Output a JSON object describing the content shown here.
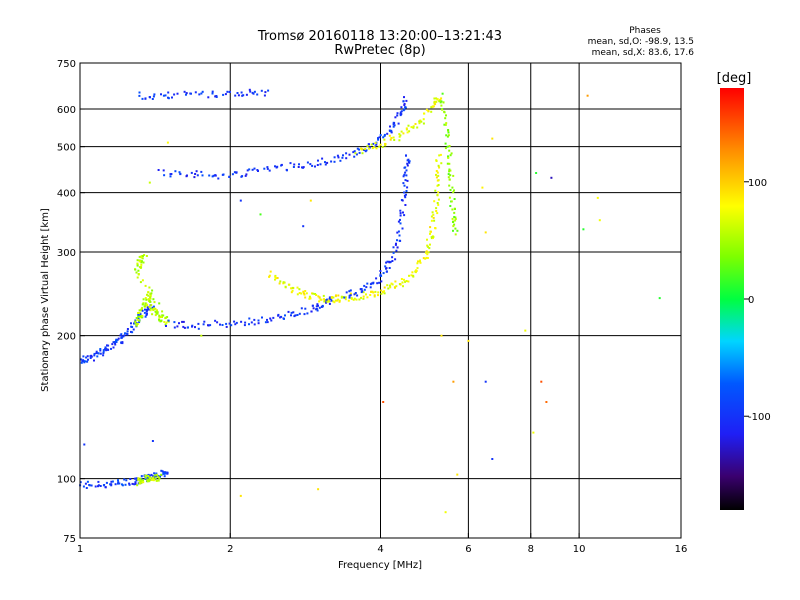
{
  "header": {
    "title_line1": "Tromsø 20160118 13:20:00–13:21:43",
    "title_line2": "RwPretec (8p)"
  },
  "stats": {
    "heading": "Phases",
    "line_o": "mean, sd,O: -98.9, 13.5",
    "line_x": "mean, sd,X:  83.6, 17.6"
  },
  "colorbar": {
    "unit_label": "[deg]",
    "ticks": [
      {
        "value": 100,
        "label": "100"
      },
      {
        "value": 0,
        "label": "0"
      },
      {
        "value": -100,
        "label": "-100"
      }
    ],
    "range": [
      -180,
      180
    ]
  },
  "chart_data": {
    "type": "scatter",
    "title": "Tromsø 20160118 13:20:00–13:21:43",
    "subtitle": "RwPretec (8p)",
    "xlabel": "Frequency [MHz]",
    "ylabel": "Stationary phase Virtual Height [km]",
    "xscale": "log",
    "yscale": "log",
    "xlim": [
      1,
      16
    ],
    "ylim": [
      75,
      750
    ],
    "x_ticks": [
      1,
      2,
      4,
      6,
      8,
      10,
      16
    ],
    "x_tick_labels": [
      "1",
      "2",
      "4",
      "6",
      "8",
      "10",
      "16"
    ],
    "y_ticks": [
      75,
      100,
      200,
      300,
      400,
      500,
      600,
      750
    ],
    "y_tick_labels": [
      "75",
      "100",
      "200",
      "300",
      "400",
      "500",
      "600",
      "750"
    ],
    "x_gridlines": [
      2,
      4,
      6,
      8,
      10
    ],
    "y_gridlines": [
      100,
      200,
      300,
      400,
      500,
      600
    ],
    "color_scale": "phase in degrees, -180 to 180",
    "traces": [
      {
        "points": [
          [
            1.0,
            97
          ],
          [
            1.1,
            97
          ],
          [
            1.2,
            98
          ],
          [
            1.3,
            99
          ],
          [
            1.35,
            100
          ],
          [
            1.4,
            101
          ],
          [
            1.45,
            102
          ],
          [
            1.5,
            103
          ]
        ],
        "phase": -95
      },
      {
        "points": [
          [
            1.3,
            98
          ],
          [
            1.35,
            100
          ],
          [
            1.4,
            100
          ],
          [
            1.45,
            101
          ]
        ],
        "phase": 60
      },
      {
        "points": [
          [
            1.0,
            175
          ],
          [
            1.05,
            180
          ],
          [
            1.1,
            185
          ],
          [
            1.15,
            190
          ],
          [
            1.2,
            195
          ],
          [
            1.25,
            205
          ],
          [
            1.3,
            215
          ],
          [
            1.35,
            225
          ],
          [
            1.4,
            232
          ]
        ],
        "phase": -95
      },
      {
        "points": [
          [
            1.3,
            210
          ],
          [
            1.32,
            220
          ],
          [
            1.35,
            235
          ],
          [
            1.38,
            245
          ],
          [
            1.4,
            225
          ],
          [
            1.45,
            218
          ],
          [
            1.5,
            214
          ],
          [
            1.3,
            270
          ],
          [
            1.32,
            285
          ],
          [
            1.35,
            300
          ]
        ],
        "phase": 55
      },
      {
        "points": [
          [
            1.5,
            212
          ],
          [
            1.7,
            210
          ],
          [
            2.0,
            212
          ],
          [
            2.3,
            215
          ],
          [
            2.6,
            220
          ],
          [
            2.9,
            228
          ],
          [
            3.1,
            234
          ],
          [
            3.2,
            238
          ]
        ],
        "phase": -100
      },
      {
        "points": [
          [
            2.4,
            270
          ],
          [
            2.6,
            255
          ],
          [
            2.8,
            245
          ],
          [
            3.0,
            240
          ],
          [
            3.2,
            239
          ],
          [
            3.4,
            240
          ],
          [
            3.7,
            243
          ],
          [
            4.0,
            248
          ],
          [
            4.3,
            255
          ],
          [
            4.6,
            268
          ],
          [
            4.9,
            290
          ],
          [
            5.05,
            320
          ],
          [
            5.15,
            360
          ],
          [
            5.2,
            420
          ],
          [
            5.25,
            480
          ]
        ],
        "phase": 75
      },
      {
        "points": [
          [
            3.4,
            242
          ],
          [
            3.7,
            250
          ],
          [
            4.0,
            265
          ],
          [
            4.2,
            285
          ],
          [
            4.35,
            320
          ],
          [
            4.45,
            380
          ],
          [
            4.5,
            440
          ],
          [
            4.55,
            480
          ]
        ],
        "phase": -100
      },
      {
        "points": [
          [
            1.45,
            440
          ],
          [
            1.7,
            438
          ],
          [
            2.0,
            435
          ],
          [
            2.3,
            445
          ],
          [
            2.7,
            455
          ],
          [
            3.1,
            465
          ],
          [
            3.5,
            480
          ],
          [
            3.9,
            505
          ],
          [
            4.2,
            540
          ],
          [
            4.4,
            590
          ],
          [
            4.5,
            630
          ]
        ],
        "phase": -100
      },
      {
        "points": [
          [
            3.6,
            490
          ],
          [
            4.0,
            505
          ],
          [
            4.4,
            530
          ],
          [
            4.8,
            560
          ],
          [
            5.1,
            610
          ],
          [
            5.3,
            640
          ]
        ],
        "phase": 75
      },
      {
        "points": [
          [
            5.3,
            640
          ],
          [
            5.4,
            560
          ],
          [
            5.5,
            480
          ],
          [
            5.55,
            420
          ],
          [
            5.6,
            360
          ],
          [
            5.65,
            330
          ]
        ],
        "phase": 40
      },
      {
        "points": [
          [
            1.3,
            640
          ],
          [
            1.5,
            640
          ],
          [
            1.8,
            645
          ],
          [
            2.1,
            648
          ],
          [
            2.4,
            652
          ]
        ],
        "phase": -100
      }
    ],
    "scattered_points": [
      {
        "x": 1.38,
        "y": 420,
        "phase": 60
      },
      {
        "x": 1.5,
        "y": 510,
        "phase": 80
      },
      {
        "x": 2.1,
        "y": 385,
        "phase": -100
      },
      {
        "x": 2.3,
        "y": 360,
        "phase": 20
      },
      {
        "x": 2.8,
        "y": 340,
        "phase": -100
      },
      {
        "x": 2.9,
        "y": 385,
        "phase": 90
      },
      {
        "x": 6.4,
        "y": 410,
        "phase": 85
      },
      {
        "x": 6.5,
        "y": 330,
        "phase": 90
      },
      {
        "x": 8.2,
        "y": 440,
        "phase": 10
      },
      {
        "x": 8.8,
        "y": 430,
        "phase": -130
      },
      {
        "x": 6.7,
        "y": 520,
        "phase": 90
      },
      {
        "x": 10.4,
        "y": 640,
        "phase": 120
      },
      {
        "x": 10.9,
        "y": 390,
        "phase": 80
      },
      {
        "x": 11.0,
        "y": 350,
        "phase": 75
      },
      {
        "x": 10.2,
        "y": 335,
        "phase": 10
      },
      {
        "x": 14.5,
        "y": 240,
        "phase": 10
      },
      {
        "x": 6.5,
        "y": 160,
        "phase": -100
      },
      {
        "x": 6.7,
        "y": 110,
        "phase": -100
      },
      {
        "x": 7.8,
        "y": 205,
        "phase": 75
      },
      {
        "x": 8.1,
        "y": 125,
        "phase": 75
      },
      {
        "x": 8.4,
        "y": 160,
        "phase": 150
      },
      {
        "x": 8.6,
        "y": 145,
        "phase": 140
      },
      {
        "x": 4.05,
        "y": 145,
        "phase": 150
      },
      {
        "x": 5.6,
        "y": 160,
        "phase": 120
      },
      {
        "x": 5.4,
        "y": 85,
        "phase": 75
      },
      {
        "x": 5.7,
        "y": 102,
        "phase": 90
      },
      {
        "x": 6.0,
        "y": 195,
        "phase": 90
      },
      {
        "x": 3.0,
        "y": 95,
        "phase": 90
      },
      {
        "x": 2.1,
        "y": 92,
        "phase": 90
      },
      {
        "x": 5.3,
        "y": 200,
        "phase": 90
      },
      {
        "x": 1.4,
        "y": 120,
        "phase": -100
      },
      {
        "x": 1.02,
        "y": 118,
        "phase": -100
      },
      {
        "x": 1.75,
        "y": 200,
        "phase": 60
      }
    ]
  }
}
